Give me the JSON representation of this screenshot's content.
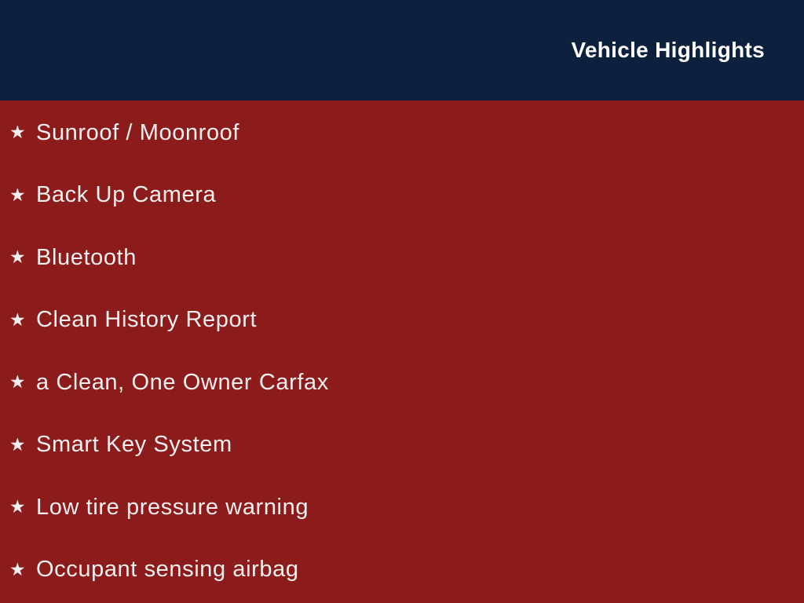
{
  "header": {
    "title": "Vehicle Highlights"
  },
  "colors": {
    "header_bg": "#0D203D",
    "body_bg": "#8C1B1B",
    "header_text": "#FFFFFF",
    "item_text": "#F5EFEF"
  },
  "list": {
    "bullet_icon": "star-icon",
    "bullet_glyph": "★",
    "items": [
      "Sunroof / Moonroof",
      "Back Up Camera",
      "Bluetooth",
      "Clean History Report",
      "a Clean, One Owner Carfax",
      "Smart Key System",
      "Low tire pressure warning",
      "Occupant sensing airbag"
    ]
  }
}
